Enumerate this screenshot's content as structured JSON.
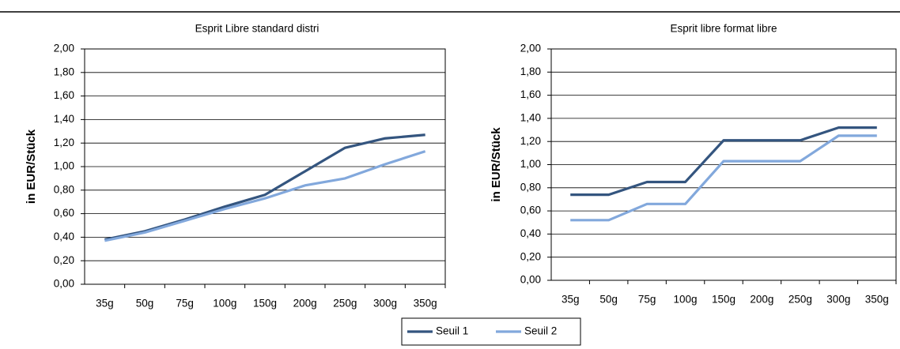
{
  "chart_data": [
    {
      "type": "line",
      "title": "Esprit Libre standard distri",
      "ylabel": "in EUR/Stück",
      "categories": [
        "35g",
        "50g",
        "75g",
        "100g",
        "150g",
        "200g",
        "250g",
        "300g",
        "350g"
      ],
      "series": [
        {
          "name": "Seuil 1",
          "color": "#34557f",
          "values": [
            0.38,
            0.45,
            0.55,
            0.66,
            0.76,
            0.96,
            1.16,
            1.24,
            1.27
          ]
        },
        {
          "name": "Seuil 2",
          "color": "#82a8dc",
          "values": [
            0.37,
            0.44,
            0.54,
            0.64,
            0.73,
            0.84,
            0.9,
            1.02,
            1.13
          ]
        }
      ],
      "ylim": [
        0,
        2
      ],
      "yticks": [
        {
          "value": 0,
          "label": "0,00"
        },
        {
          "value": 0.2,
          "label": "0,20"
        },
        {
          "value": 0.4,
          "label": "0,40"
        },
        {
          "value": 0.6,
          "label": "0,60"
        },
        {
          "value": 0.8,
          "label": "0,80"
        },
        {
          "value": 1,
          "label": "1,00"
        },
        {
          "value": 1.2,
          "label": "1,20"
        },
        {
          "value": 1.4,
          "label": "1,40"
        },
        {
          "value": 1.6,
          "label": "1,60"
        },
        {
          "value": 1.8,
          "label": "1,80"
        },
        {
          "value": 2,
          "label": "2,00"
        }
      ],
      "grid": true
    },
    {
      "type": "line",
      "title": "Esprit libre format libre",
      "ylabel": "in EUR/Stück",
      "categories": [
        "35g",
        "50g",
        "75g",
        "100g",
        "150g",
        "200g",
        "250g",
        "300g",
        "350g"
      ],
      "series": [
        {
          "color": "#34557f",
          "values": [
            0.74,
            0.74,
            0.85,
            0.85,
            1.21,
            1.21,
            1.21,
            1.32,
            1.32
          ]
        },
        {
          "color": "#82a8dc",
          "values": [
            0.52,
            0.52,
            0.66,
            0.66,
            1.03,
            1.03,
            1.03,
            1.25,
            1.25
          ]
        }
      ],
      "ylim": [
        0,
        2
      ],
      "yticks": [
        {
          "value": 0,
          "label": "0,00"
        },
        {
          "value": 0.2,
          "label": "0,20"
        },
        {
          "value": 0.4,
          "label": "0,40"
        },
        {
          "value": 0.6,
          "label": "0,60"
        },
        {
          "value": 0.8,
          "label": "0,80"
        },
        {
          "value": 1,
          "label": "1,00"
        },
        {
          "value": 1.2,
          "label": "1,20"
        },
        {
          "value": 1.4,
          "label": "1,40"
        },
        {
          "value": 1.6,
          "label": "1,60"
        },
        {
          "value": 1.8,
          "label": "1,80"
        },
        {
          "value": 2,
          "label": "2,00"
        }
      ],
      "grid": true
    }
  ]
}
